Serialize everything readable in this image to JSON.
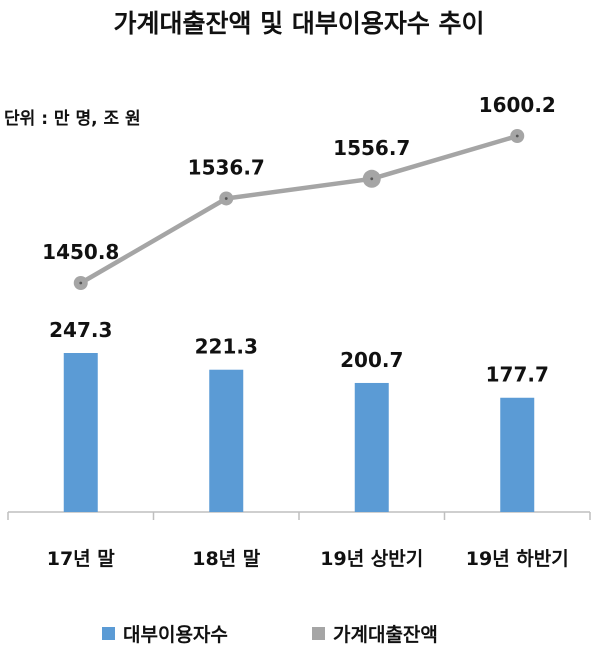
{
  "chart_data": {
    "type": "bar+line",
    "title": "가계대출잔액 및 대부이용자수 추이",
    "unit_label": "단위 : 만 명, 조 원",
    "categories": [
      "17년 말",
      "18년 말",
      "19년 상반기",
      "19년 하반기"
    ],
    "series": [
      {
        "name": "대부이용자수",
        "type": "bar",
        "color": "#5b9bd5",
        "values": [
          247.3,
          221.3,
          200.7,
          177.7
        ],
        "labels": [
          "247.3",
          "221.3",
          "200.7",
          "177.7"
        ]
      },
      {
        "name": "가계대출잔액",
        "type": "line",
        "color": "#a5a5a5",
        "values": [
          1450.8,
          1536.7,
          1556.7,
          1600.2
        ],
        "labels": [
          "1450.8",
          "1536.7",
          "1556.7",
          "1600.2"
        ]
      }
    ],
    "grid": false,
    "legend_position": "bottom"
  }
}
